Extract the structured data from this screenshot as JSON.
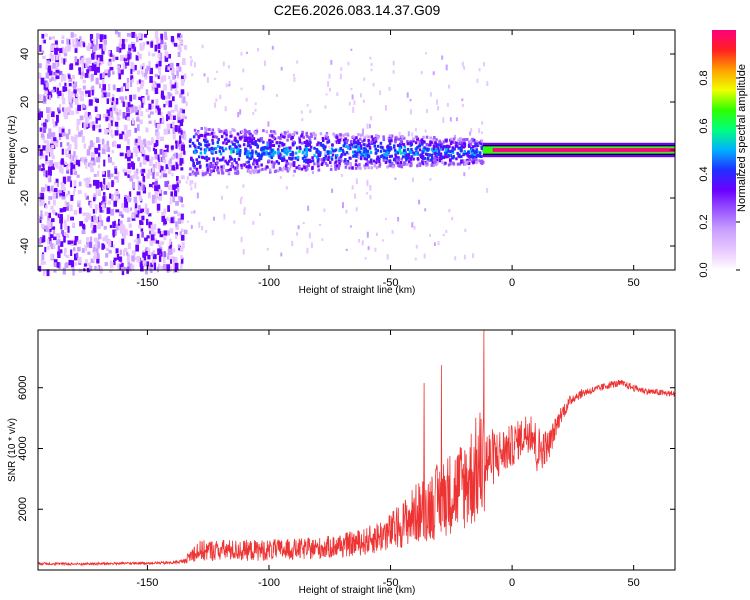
{
  "title": "C2E6.2026.083.14.37.G09",
  "colors": {
    "snr_line": "#ee3333",
    "heatmap_palette": [
      "#ffffff",
      "#e8c8ff",
      "#c9a0ff",
      "#9a55ff",
      "#6a00ff",
      "#2030ff",
      "#00b0ff",
      "#00ff80",
      "#30ff00",
      "#f0ff00",
      "#ffa000",
      "#ff2020",
      "#ff0080"
    ]
  },
  "chart_data": [
    {
      "type": "heatmap",
      "xlabel": "Height of straight line (km)",
      "ylabel": "Frequency (Hz)",
      "xlim": [
        -195,
        67
      ],
      "ylim": [
        -50,
        50
      ],
      "x_ticks": [
        -150,
        -100,
        -50,
        0,
        50
      ],
      "y_ticks": [
        -40,
        -20,
        0,
        20,
        40
      ],
      "colorbar": {
        "label": "Normalized spectral amplitude",
        "range": [
          0,
          1
        ],
        "ticks": [
          "0.0",
          "0.2",
          "0.4",
          "0.6",
          "0.8"
        ]
      },
      "regions": [
        {
          "x_range": [
            -195,
            -135
          ],
          "description_values": {
            "freq_spread_hz": 50,
            "amplitude_level": 0.12
          }
        },
        {
          "x_range": [
            -135,
            -12
          ],
          "description_values": {
            "freq_spread_hz": 8,
            "amplitude_level": 0.3
          }
        },
        {
          "x_range": [
            -12,
            67
          ],
          "description_values": {
            "freq_spread_hz": 2,
            "amplitude_level": 0.95
          }
        }
      ]
    },
    {
      "type": "line",
      "xlabel": "Height of straight line (km)",
      "ylabel": "SNR (10 * v/v)",
      "xlim": [
        -195,
        67
      ],
      "ylim": [
        0,
        7900
      ],
      "x_ticks": [
        -150,
        -100,
        -50,
        0,
        50
      ],
      "y_ticks": [
        2000,
        4000,
        6000
      ],
      "series": [
        {
          "x": [
            -195,
            -180,
            -160,
            -140,
            -135,
            -130,
            -120,
            -110,
            -100,
            -90,
            -80,
            -70,
            -60,
            -50,
            -45,
            -40,
            -35,
            -30,
            -25,
            -20,
            -15,
            -12,
            -10,
            -5,
            0,
            5,
            8,
            10,
            15,
            20,
            25,
            30,
            35,
            40,
            45,
            50,
            55,
            60,
            67
          ],
          "values": [
            200,
            180,
            200,
            220,
            260,
            480,
            520,
            500,
            520,
            540,
            560,
            650,
            760,
            1000,
            1200,
            1450,
            1600,
            1800,
            2000,
            2200,
            2500,
            2800,
            3200,
            3500,
            3800,
            4200,
            4400,
            3600,
            3900,
            5000,
            5600,
            5800,
            5900,
            6050,
            6100,
            5950,
            5850,
            5800,
            5750
          ],
          "noise_amplitude": [
            60,
            60,
            60,
            60,
            100,
            500,
            500,
            500,
            500,
            500,
            520,
            560,
            650,
            900,
            1100,
            1400,
            1600,
            1800,
            2000,
            2200,
            2600,
            2800,
            1500,
            1200,
            1000,
            900,
            1200,
            1200,
            700,
            400,
            250,
            200,
            180,
            180,
            160,
            160,
            150,
            150,
            150
          ]
        }
      ]
    }
  ]
}
